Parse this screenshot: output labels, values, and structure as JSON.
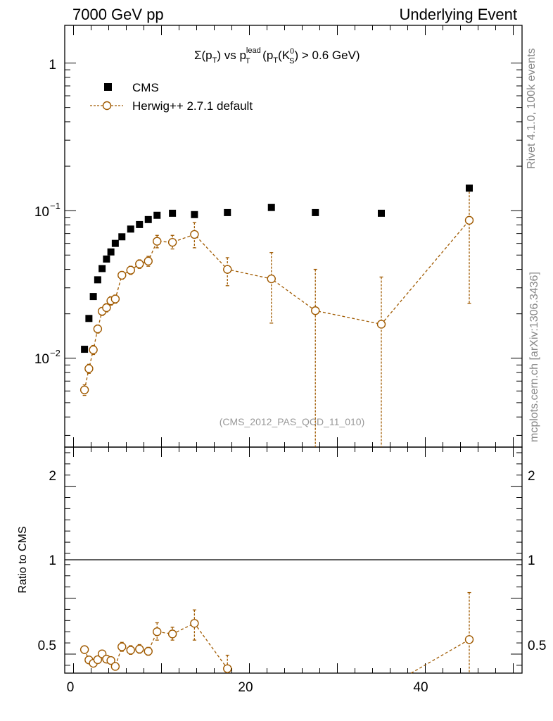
{
  "header": {
    "left": "7000 GeV pp",
    "right": "Underlying Event"
  },
  "side_labels": {
    "rivet": "Rivet 4.1.0,  100k events",
    "mcplots": "mcplots.cern.ch [arXiv:1306.3436]"
  },
  "chart_data": [
    {
      "type": "scatter",
      "title_parts": {
        "sigma": "Σ(p",
        "t1": "T",
        "vs": ") vs p",
        "lead": "lead",
        "t2": "T",
        "paren": " (p",
        "t3": "T",
        "k": "(K",
        "zero": "0",
        "s": "S",
        "tail": ") > 0.6 GeV)"
      },
      "analysis_id": "(CMS_2012_PAS_QCD_11_010)",
      "yscale": "log",
      "ylim": [
        0.0025,
        1.8
      ],
      "xlim": [
        -1,
        51
      ],
      "ytick_labels": {
        "one": "1",
        "e1_base": "10",
        "e1_exp": "−1",
        "e2_base": "10",
        "e2_exp": "−2"
      },
      "legend": [
        {
          "name": "CMS",
          "marker": "square",
          "color": "#000000"
        },
        {
          "name": "Herwig++ 2.7.1 default",
          "marker": "circle",
          "color": "#a05a00"
        }
      ],
      "series": [
        {
          "name": "CMS",
          "x": [
            1.25,
            1.75,
            2.25,
            2.75,
            3.25,
            3.75,
            4.25,
            4.75,
            5.5,
            6.5,
            7.5,
            8.5,
            9.5,
            11.25,
            13.75,
            17.5,
            22.5,
            27.5,
            35.0,
            45.0
          ],
          "y": [
            0.0115,
            0.0186,
            0.0262,
            0.034,
            0.0405,
            0.047,
            0.0525,
            0.06,
            0.0665,
            0.075,
            0.0805,
            0.087,
            0.093,
            0.096,
            0.094,
            0.097,
            0.105,
            0.097,
            0.096,
            0.142
          ]
        },
        {
          "name": "Herwig++ 2.7.1 default",
          "x": [
            1.25,
            1.75,
            2.25,
            2.75,
            3.25,
            3.75,
            4.25,
            4.75,
            5.5,
            6.5,
            7.5,
            8.5,
            9.5,
            11.25,
            13.75,
            17.5,
            22.5,
            27.5,
            35.0,
            45.0
          ],
          "y": [
            0.0061,
            0.0085,
            0.0114,
            0.0158,
            0.0208,
            0.022,
            0.0245,
            0.0252,
            0.0365,
            0.0395,
            0.0435,
            0.0455,
            0.062,
            0.061,
            0.069,
            0.04,
            0.0345,
            0.021,
            0.017,
            0.086
          ],
          "ylo": [
            0.0056,
            0.0079,
            0.0106,
            0.0148,
            0.0195,
            0.0206,
            0.0229,
            0.0236,
            0.0343,
            0.037,
            0.0406,
            0.042,
            0.056,
            0.055,
            0.056,
            0.031,
            0.0173,
            0.001,
            0.001,
            0.0235
          ],
          "yhi": [
            0.0066,
            0.0091,
            0.0122,
            0.0168,
            0.0221,
            0.0234,
            0.0261,
            0.0268,
            0.0387,
            0.042,
            0.0464,
            0.049,
            0.068,
            0.068,
            0.083,
            0.048,
            0.052,
            0.04,
            0.0355,
            0.142
          ]
        }
      ]
    },
    {
      "type": "scatter",
      "ylabel": "Ratio to CMS",
      "ylim": [
        0.33,
        2.35
      ],
      "xlim": [
        -1,
        51
      ],
      "xticks": [
        "0",
        "20",
        "40"
      ],
      "yticks_left": [
        "0.5",
        "1",
        "2"
      ],
      "yticks_right": [
        "0.5",
        "1",
        "2"
      ],
      "reference_line": 1.0,
      "series": [
        {
          "name": "Herwig++ 2.7.1 default",
          "x": [
            1.25,
            1.75,
            2.25,
            2.75,
            3.25,
            3.75,
            4.25,
            4.75,
            5.5,
            6.5,
            7.5,
            8.5,
            9.5,
            11.25,
            13.75,
            17.5,
            45.0
          ],
          "y": [
            0.54,
            0.448,
            0.418,
            0.45,
            0.502,
            0.455,
            0.443,
            0.39,
            0.565,
            0.535,
            0.545,
            0.525,
            0.7,
            0.68,
            0.775,
            0.37,
            0.63
          ],
          "ylo": [
            0.51,
            0.425,
            0.395,
            0.425,
            0.47,
            0.43,
            0.42,
            0.368,
            0.525,
            0.498,
            0.508,
            0.49,
            0.625,
            0.625,
            0.625,
            0.29,
            0.17
          ],
          "yhi": [
            0.57,
            0.472,
            0.44,
            0.475,
            0.535,
            0.48,
            0.465,
            0.41,
            0.605,
            0.575,
            0.585,
            0.56,
            0.78,
            0.74,
            0.895,
            0.49,
            1.05
          ]
        }
      ],
      "offscale_segment": {
        "x": [
          35.0,
          45.0
        ],
        "y": [
          0.177,
          0.63
        ]
      }
    }
  ]
}
